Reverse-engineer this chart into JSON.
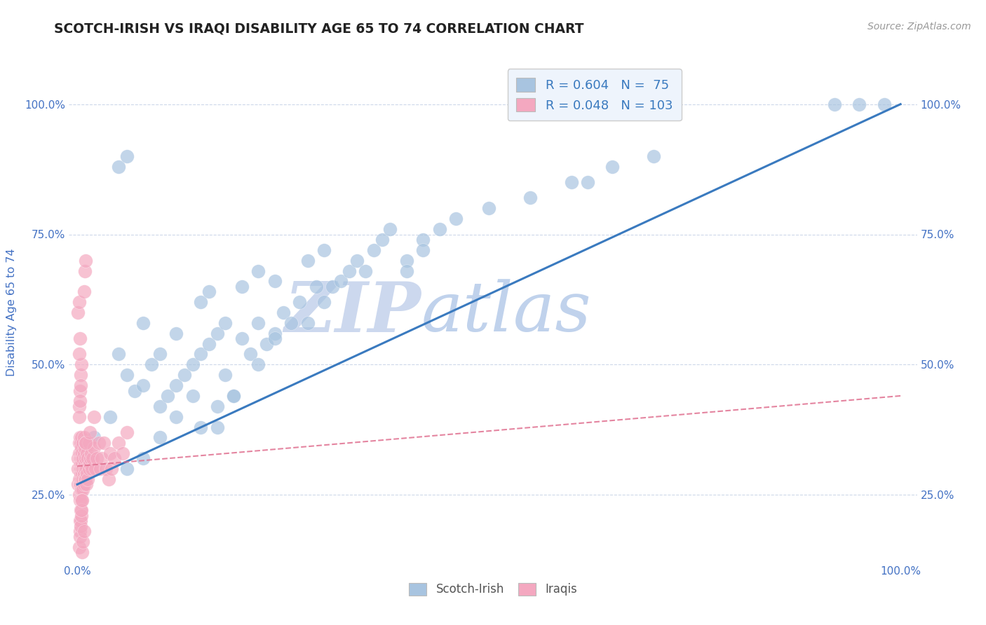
{
  "title": "SCOTCH-IRISH VS IRAQI DISABILITY AGE 65 TO 74 CORRELATION CHART",
  "source": "Source: ZipAtlas.com",
  "ylabel": "Disability Age 65 to 74",
  "scotch_irish_R": 0.604,
  "scotch_irish_N": 75,
  "iraqi_R": 0.048,
  "iraqi_N": 103,
  "scotch_irish_color": "#a8c4e0",
  "iraqi_color": "#f4a8c0",
  "scotch_irish_line_color": "#3a7abf",
  "iraqi_line_color": "#e07090",
  "background_color": "#ffffff",
  "grid_color": "#c8d4e8",
  "watermark_zip_color": "#d0dff0",
  "watermark_atlas_color": "#c0d4ec",
  "axis_label_color": "#4472c4",
  "legend_bg_color": "#eef4fc",
  "legend_border_color": "#cccccc",
  "scotch_irish_x": [
    0.02,
    0.04,
    0.05,
    0.06,
    0.07,
    0.08,
    0.08,
    0.09,
    0.1,
    0.1,
    0.11,
    0.12,
    0.12,
    0.13,
    0.14,
    0.14,
    0.15,
    0.15,
    0.16,
    0.16,
    0.17,
    0.17,
    0.18,
    0.18,
    0.19,
    0.2,
    0.2,
    0.21,
    0.22,
    0.22,
    0.23,
    0.24,
    0.24,
    0.25,
    0.26,
    0.27,
    0.28,
    0.28,
    0.29,
    0.3,
    0.3,
    0.31,
    0.32,
    0.33,
    0.34,
    0.35,
    0.36,
    0.37,
    0.38,
    0.4,
    0.42,
    0.44,
    0.46,
    0.5,
    0.55,
    0.6,
    0.22,
    0.24,
    0.15,
    0.17,
    0.19,
    0.08,
    0.1,
    0.12,
    0.06,
    0.4,
    0.42,
    0.05,
    0.06,
    0.92,
    0.95,
    0.98,
    0.62,
    0.65,
    0.7
  ],
  "scotch_irish_y": [
    0.36,
    0.4,
    0.52,
    0.48,
    0.45,
    0.46,
    0.58,
    0.5,
    0.52,
    0.42,
    0.44,
    0.46,
    0.56,
    0.48,
    0.5,
    0.44,
    0.52,
    0.62,
    0.54,
    0.64,
    0.56,
    0.38,
    0.58,
    0.48,
    0.44,
    0.55,
    0.65,
    0.52,
    0.58,
    0.68,
    0.54,
    0.56,
    0.66,
    0.6,
    0.58,
    0.62,
    0.58,
    0.7,
    0.65,
    0.62,
    0.72,
    0.65,
    0.66,
    0.68,
    0.7,
    0.68,
    0.72,
    0.74,
    0.76,
    0.7,
    0.74,
    0.76,
    0.78,
    0.8,
    0.82,
    0.85,
    0.5,
    0.55,
    0.38,
    0.42,
    0.44,
    0.32,
    0.36,
    0.4,
    0.3,
    0.68,
    0.72,
    0.88,
    0.9,
    1.0,
    1.0,
    1.0,
    0.85,
    0.88,
    0.9
  ],
  "iraqi_x": [
    0.001,
    0.001,
    0.001,
    0.002,
    0.002,
    0.002,
    0.002,
    0.003,
    0.003,
    0.003,
    0.003,
    0.003,
    0.003,
    0.004,
    0.004,
    0.004,
    0.004,
    0.004,
    0.005,
    0.005,
    0.005,
    0.005,
    0.005,
    0.005,
    0.006,
    0.006,
    0.006,
    0.006,
    0.007,
    0.007,
    0.007,
    0.007,
    0.007,
    0.008,
    0.008,
    0.008,
    0.008,
    0.009,
    0.009,
    0.009,
    0.009,
    0.01,
    0.01,
    0.01,
    0.011,
    0.011,
    0.012,
    0.012,
    0.013,
    0.013,
    0.014,
    0.014,
    0.015,
    0.016,
    0.017,
    0.018,
    0.019,
    0.02,
    0.022,
    0.024,
    0.026,
    0.028,
    0.03,
    0.032,
    0.035,
    0.038,
    0.04,
    0.042,
    0.045,
    0.05,
    0.055,
    0.06,
    0.002,
    0.003,
    0.004,
    0.005,
    0.003,
    0.004,
    0.005,
    0.003,
    0.004,
    0.002,
    0.003,
    0.004,
    0.005,
    0.006,
    0.007,
    0.008,
    0.002,
    0.003,
    0.002,
    0.003,
    0.004,
    0.005,
    0.006,
    0.001,
    0.002,
    0.01,
    0.015,
    0.02,
    0.008,
    0.009,
    0.01
  ],
  "iraqi_y": [
    0.3,
    0.32,
    0.27,
    0.35,
    0.28,
    0.33,
    0.25,
    0.32,
    0.28,
    0.36,
    0.3,
    0.27,
    0.24,
    0.33,
    0.29,
    0.35,
    0.27,
    0.31,
    0.32,
    0.28,
    0.34,
    0.26,
    0.3,
    0.36,
    0.31,
    0.27,
    0.33,
    0.29,
    0.32,
    0.28,
    0.35,
    0.3,
    0.26,
    0.33,
    0.29,
    0.36,
    0.27,
    0.31,
    0.28,
    0.34,
    0.3,
    0.32,
    0.28,
    0.35,
    0.3,
    0.27,
    0.33,
    0.29,
    0.32,
    0.28,
    0.35,
    0.3,
    0.31,
    0.32,
    0.33,
    0.3,
    0.32,
    0.34,
    0.3,
    0.32,
    0.35,
    0.3,
    0.32,
    0.35,
    0.3,
    0.28,
    0.33,
    0.3,
    0.32,
    0.35,
    0.33,
    0.37,
    0.42,
    0.45,
    0.48,
    0.5,
    0.2,
    0.22,
    0.24,
    0.18,
    0.2,
    0.15,
    0.17,
    0.19,
    0.21,
    0.14,
    0.16,
    0.18,
    0.52,
    0.55,
    0.4,
    0.43,
    0.46,
    0.22,
    0.24,
    0.6,
    0.62,
    0.35,
    0.37,
    0.4,
    0.64,
    0.68,
    0.7
  ],
  "si_line_x0": 0.0,
  "si_line_y0": 0.27,
  "si_line_x1": 1.0,
  "si_line_y1": 1.0,
  "iq_line_x0": 0.0,
  "iq_line_y0": 0.305,
  "iq_line_x1": 1.0,
  "iq_line_y1": 0.44,
  "xlim": [
    0.0,
    1.0
  ],
  "ylim": [
    0.12,
    1.08
  ],
  "yticks": [
    0.25,
    0.5,
    0.75,
    1.0
  ],
  "xticks": [
    0.0,
    1.0
  ]
}
